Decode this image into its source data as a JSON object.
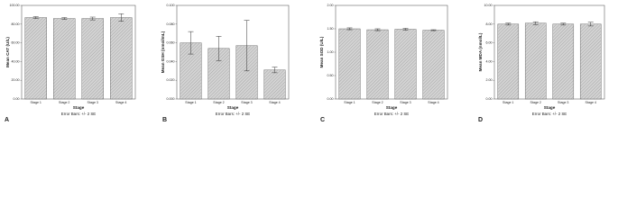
{
  "chart_data": [
    {
      "type": "bar",
      "panel": "A",
      "ylabel": "Mean CAT (U/L)",
      "xlabel": "Stage",
      "note": "Error Bars: +/- 2 SE",
      "categories": [
        "Stage 1",
        "Stage 2",
        "Stage 3",
        "Stage 4"
      ],
      "values": [
        87,
        86,
        86,
        87
      ],
      "errors": [
        1,
        1,
        1.5,
        4
      ],
      "color": "#d4d4d4",
      "ylim": [
        0,
        100
      ],
      "yticks": [
        {
          "value": 0,
          "label": "0.00"
        },
        {
          "value": 20,
          "label": "20.00"
        },
        {
          "value": 40,
          "label": "40.00"
        },
        {
          "value": 60,
          "label": "60.00"
        },
        {
          "value": 80,
          "label": "80.00"
        },
        {
          "value": 100,
          "label": "100.00"
        }
      ]
    },
    {
      "type": "bar",
      "panel": "B",
      "ylabel": "Mean GSH (nmol/mL)",
      "xlabel": "Stage",
      "note": "Error Bars: +/- 2 SE",
      "categories": [
        "Stage 1",
        "Stage 2",
        "Stage 3",
        "Stage 4"
      ],
      "values": [
        0.06,
        0.054,
        0.057,
        0.031
      ],
      "errors": [
        0.012,
        0.013,
        0.027,
        0.003
      ],
      "color": "#d4d4d4",
      "ylim": [
        0,
        0.1
      ],
      "yticks": [
        {
          "value": 0,
          "label": "0.000"
        },
        {
          "value": 0.02,
          "label": "0.020"
        },
        {
          "value": 0.04,
          "label": "0.040"
        },
        {
          "value": 0.06,
          "label": "0.060"
        },
        {
          "value": 0.08,
          "label": "0.080"
        },
        {
          "value": 0.1,
          "label": "0.100"
        }
      ]
    },
    {
      "type": "bar",
      "panel": "C",
      "ylabel": "Mean SOD (U/L)",
      "xlabel": "Stage",
      "note": "Error Bars: +/- 2 SE",
      "categories": [
        "Stage 1",
        "Stage 2",
        "Stage 3",
        "Stage 4"
      ],
      "values": [
        1.5,
        1.48,
        1.49,
        1.47
      ],
      "errors": [
        0.02,
        0.02,
        0.02,
        0.01
      ],
      "color": "#d4d4d4",
      "ylim": [
        0,
        2
      ],
      "yticks": [
        {
          "value": 0,
          "label": "0.00"
        },
        {
          "value": 0.5,
          "label": "0.50"
        },
        {
          "value": 1,
          "label": "1.00"
        },
        {
          "value": 1.5,
          "label": "1.50"
        },
        {
          "value": 2,
          "label": "2.00"
        }
      ]
    },
    {
      "type": "bar",
      "panel": "D",
      "ylabel": "Mean MDA (nmol/L)",
      "xlabel": "Stage",
      "note": "Error Bars: +/- 2 SE",
      "categories": [
        "Stage 1",
        "Stage 2",
        "Stage 3",
        "Stage 4"
      ],
      "values": [
        8,
        8.1,
        8,
        8
      ],
      "errors": [
        0.1,
        0.15,
        0.1,
        0.2
      ],
      "color": "#d4d4d4",
      "ylim": [
        0,
        10
      ],
      "yticks": [
        {
          "value": 0,
          "label": "0.00"
        },
        {
          "value": 2,
          "label": "2.00"
        },
        {
          "value": 4,
          "label": "4.00"
        },
        {
          "value": 6,
          "label": "6.00"
        },
        {
          "value": 8,
          "label": "8.00"
        },
        {
          "value": 10,
          "label": "10.00"
        }
      ]
    }
  ]
}
